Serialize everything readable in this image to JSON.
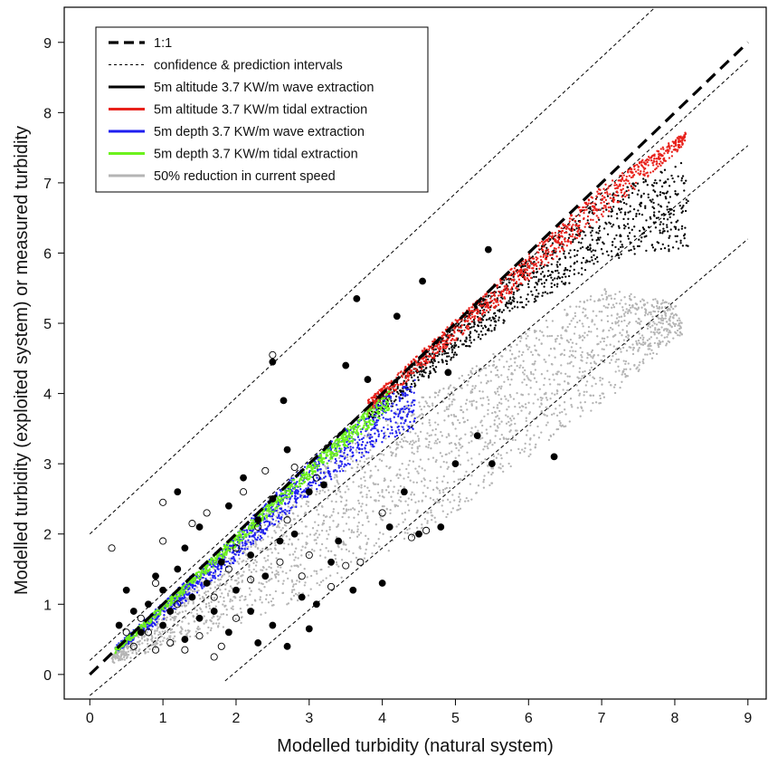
{
  "chart_data": {
    "type": "scatter",
    "xlabel": "Modelled turbidity (natural system)",
    "ylabel": "Modelled turbidity (exploited system) or measured turbidity",
    "xlim": [
      -0.35,
      9.25
    ],
    "ylim": [
      -0.35,
      9.5
    ],
    "xticks": [
      0,
      1,
      2,
      3,
      4,
      5,
      6,
      7,
      8,
      9
    ],
    "yticks": [
      0,
      1,
      2,
      3,
      4,
      5,
      6,
      7,
      8,
      9
    ],
    "grid": false,
    "legend_position": "top-left",
    "legend": [
      {
        "label": "1:1",
        "style": "dashed-thick",
        "color": "#000000"
      },
      {
        "label": "confidence & prediction intervals",
        "style": "dashed-thin",
        "color": "#000000"
      },
      {
        "label": "5m altitude 3.7 KW/m wave extraction",
        "style": "solid",
        "color": "#000000"
      },
      {
        "label": "5m altitude 3.7 KW/m tidal extraction",
        "style": "solid",
        "color": "#e8211b"
      },
      {
        "label": "5m depth 3.7 KW/m wave extraction",
        "style": "solid",
        "color": "#1f1ff0"
      },
      {
        "label": "5m depth 3.7 KW/m tidal extraction",
        "style": "solid",
        "color": "#6cf21c"
      },
      {
        "label": "50% reduction in current speed",
        "style": "solid",
        "color": "#b4b4b4"
      }
    ],
    "reference_lines": [
      {
        "name": "1:1",
        "slope": 1.0,
        "intercept": 0.0,
        "x_range": [
          0,
          9.0
        ],
        "style": "dashed-thick"
      },
      {
        "name": "upper prediction interval",
        "slope": 0.97,
        "intercept": 2.0,
        "x_range": [
          0,
          9.0
        ],
        "style": "dashed-thin"
      },
      {
        "name": "upper confidence interval",
        "slope": 0.95,
        "intercept": 0.2,
        "x_range": [
          0,
          9.0
        ],
        "style": "dashed-thin"
      },
      {
        "name": "lower confidence interval",
        "slope": 0.87,
        "intercept": -0.3,
        "x_range": [
          0,
          9.0
        ],
        "style": "dashed-thin"
      },
      {
        "name": "lower prediction interval",
        "slope": 0.88,
        "intercept": -1.72,
        "x_range": [
          1.85,
          9.0
        ],
        "style": "dashed-thin"
      }
    ],
    "model_bands": [
      {
        "series": "50% reduction in current speed",
        "color": "#b4b4b4",
        "x_range": [
          0.3,
          8.1
        ],
        "upper": [
          [
            0.3,
            0.3
          ],
          [
            2.0,
            1.9
          ],
          [
            3.0,
            2.85
          ],
          [
            4.0,
            3.65
          ],
          [
            5.0,
            4.2
          ],
          [
            6.0,
            4.9
          ],
          [
            7.0,
            5.5
          ],
          [
            8.0,
            5.3
          ],
          [
            8.1,
            5.0
          ]
        ],
        "lower": [
          [
            0.3,
            0.15
          ],
          [
            2.0,
            0.7
          ],
          [
            3.0,
            1.1
          ],
          [
            4.0,
            1.7
          ],
          [
            5.0,
            2.3
          ],
          [
            6.0,
            3.1
          ],
          [
            7.0,
            3.8
          ],
          [
            8.0,
            4.8
          ],
          [
            8.1,
            4.8
          ]
        ]
      },
      {
        "series": "5m altitude 3.7 KW/m wave extraction",
        "color": "#000000",
        "x_range": [
          3.8,
          8.2
        ],
        "upper": [
          [
            3.8,
            3.85
          ],
          [
            5.0,
            5.0
          ],
          [
            6.0,
            5.95
          ],
          [
            7.0,
            6.8
          ],
          [
            8.2,
            7.35
          ]
        ],
        "lower": [
          [
            3.8,
            3.55
          ],
          [
            5.0,
            4.5
          ],
          [
            6.0,
            5.25
          ],
          [
            7.0,
            5.8
          ],
          [
            7.55,
            6.0
          ]
        ]
      },
      {
        "series": "5m altitude 3.7 KW/m tidal extraction",
        "color": "#e8211b",
        "x_range": [
          3.8,
          8.15
        ],
        "upper": [
          [
            3.8,
            3.9
          ],
          [
            5.0,
            5.05
          ],
          [
            6.0,
            6.0
          ],
          [
            7.0,
            6.95
          ],
          [
            8.15,
            7.72
          ]
        ],
        "lower": [
          [
            3.8,
            3.7
          ],
          [
            5.0,
            4.75
          ],
          [
            6.0,
            5.6
          ],
          [
            7.0,
            6.5
          ],
          [
            8.15,
            7.55
          ]
        ]
      },
      {
        "series": "5m depth 3.7 KW/m wave extraction",
        "color": "#1f1ff0",
        "x_range": [
          0.35,
          4.45
        ],
        "upper": [
          [
            0.35,
            0.4
          ],
          [
            1.0,
            1.02
          ],
          [
            2.0,
            2.02
          ],
          [
            3.0,
            3.05
          ],
          [
            4.0,
            3.95
          ],
          [
            4.45,
            4.2
          ]
        ],
        "lower": [
          [
            0.35,
            0.3
          ],
          [
            1.0,
            0.78
          ],
          [
            2.0,
            1.6
          ],
          [
            3.0,
            2.55
          ],
          [
            4.0,
            3.3
          ],
          [
            4.45,
            3.5
          ]
        ]
      },
      {
        "series": "5m depth 3.7 KW/m tidal extraction",
        "color": "#6cf21c",
        "x_range": [
          0.35,
          4.1
        ],
        "upper": [
          [
            0.35,
            0.38
          ],
          [
            1.0,
            1.0
          ],
          [
            2.0,
            2.0
          ],
          [
            3.0,
            3.0
          ],
          [
            4.1,
            4.05
          ]
        ],
        "lower": [
          [
            0.35,
            0.3
          ],
          [
            1.0,
            0.88
          ],
          [
            2.0,
            1.82
          ],
          [
            3.0,
            2.78
          ],
          [
            4.1,
            3.75
          ]
        ]
      }
    ],
    "observations_filled": [
      [
        0.4,
        0.7
      ],
      [
        0.5,
        1.2
      ],
      [
        0.6,
        0.9
      ],
      [
        0.7,
        0.6
      ],
      [
        0.8,
        1.0
      ],
      [
        0.9,
        1.4
      ],
      [
        1.0,
        0.7
      ],
      [
        1.0,
        1.2
      ],
      [
        1.1,
        0.9
      ],
      [
        1.2,
        1.5
      ],
      [
        1.2,
        2.6
      ],
      [
        1.3,
        0.5
      ],
      [
        1.3,
        1.8
      ],
      [
        1.4,
        1.1
      ],
      [
        1.5,
        2.1
      ],
      [
        1.5,
        0.8
      ],
      [
        1.6,
        1.3
      ],
      [
        1.7,
        0.9
      ],
      [
        1.8,
        1.6
      ],
      [
        1.9,
        0.6
      ],
      [
        1.9,
        2.4
      ],
      [
        2.0,
        1.2
      ],
      [
        2.1,
        2.8
      ],
      [
        2.2,
        0.9
      ],
      [
        2.2,
        1.7
      ],
      [
        2.3,
        2.2
      ],
      [
        2.4,
        1.4
      ],
      [
        2.5,
        2.5
      ],
      [
        2.5,
        0.7
      ],
      [
        2.6,
        1.9
      ],
      [
        2.7,
        3.2
      ],
      [
        2.7,
        0.4
      ],
      [
        2.8,
        2.0
      ],
      [
        2.9,
        1.1
      ],
      [
        3.0,
        2.6
      ],
      [
        3.0,
        0.65
      ],
      [
        3.1,
        1.0
      ],
      [
        3.2,
        2.7
      ],
      [
        3.3,
        1.6
      ],
      [
        3.4,
        1.9
      ],
      [
        3.6,
        1.2
      ],
      [
        3.65,
        5.35
      ],
      [
        3.8,
        4.2
      ],
      [
        4.0,
        1.3
      ],
      [
        4.2,
        5.1
      ],
      [
        4.3,
        2.6
      ],
      [
        4.5,
        2.0
      ],
      [
        4.55,
        5.6
      ],
      [
        4.8,
        2.1
      ],
      [
        4.9,
        4.3
      ],
      [
        5.0,
        3.0
      ],
      [
        5.3,
        3.4
      ],
      [
        5.45,
        6.05
      ],
      [
        5.5,
        3.0
      ],
      [
        6.35,
        3.1
      ],
      [
        2.5,
        4.45
      ],
      [
        2.65,
        3.9
      ],
      [
        3.5,
        4.4
      ],
      [
        4.1,
        2.1
      ],
      [
        2.3,
        0.45
      ]
    ],
    "observations_open": [
      [
        0.3,
        1.8
      ],
      [
        0.5,
        0.6
      ],
      [
        0.6,
        0.4
      ],
      [
        0.7,
        0.8
      ],
      [
        0.8,
        0.6
      ],
      [
        0.9,
        1.3
      ],
      [
        0.9,
        0.35
      ],
      [
        1.0,
        2.45
      ],
      [
        1.0,
        1.9
      ],
      [
        1.1,
        0.45
      ],
      [
        1.2,
        1.0
      ],
      [
        1.3,
        0.35
      ],
      [
        1.4,
        2.15
      ],
      [
        1.5,
        0.55
      ],
      [
        1.6,
        2.3
      ],
      [
        1.7,
        1.1
      ],
      [
        1.8,
        0.4
      ],
      [
        1.9,
        1.5
      ],
      [
        2.0,
        1.8
      ],
      [
        2.1,
        2.6
      ],
      [
        2.2,
        1.35
      ],
      [
        2.3,
        2.1
      ],
      [
        2.4,
        2.9
      ],
      [
        2.5,
        4.55
      ],
      [
        2.6,
        1.6
      ],
      [
        2.7,
        2.2
      ],
      [
        2.8,
        2.95
      ],
      [
        2.9,
        1.4
      ],
      [
        3.0,
        1.7
      ],
      [
        3.1,
        2.8
      ],
      [
        3.3,
        1.25
      ],
      [
        3.5,
        1.55
      ],
      [
        3.7,
        1.6
      ],
      [
        4.0,
        2.3
      ],
      [
        4.4,
        1.95
      ],
      [
        4.6,
        2.05
      ],
      [
        1.7,
        0.25
      ],
      [
        2.0,
        0.8
      ]
    ]
  }
}
